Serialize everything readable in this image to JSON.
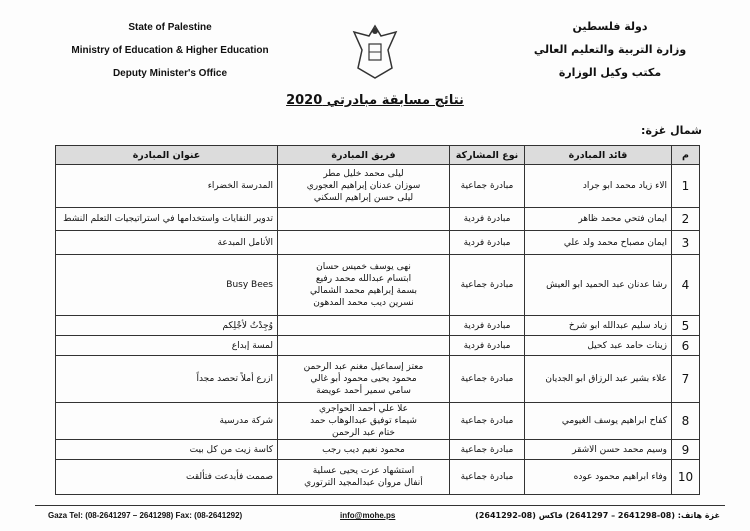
{
  "header": {
    "left_lines": [
      "State of Palestine",
      "Ministry of Education & Higher Education",
      "Deputy Minister's Office"
    ],
    "right_lines": [
      "دولة فلسطين",
      "وزارة التربية والتعليم العالي",
      "مكتب وكيل الوزارة"
    ]
  },
  "title": "نتائج مسابقة مبادرتي 2020",
  "section": "شمال غزة:",
  "table": {
    "columns": [
      "م",
      "قائد المبادرة",
      "نوع المشاركة",
      "فريق المبادرة",
      "عنوان المبادرة"
    ],
    "rows": [
      {
        "num": "1",
        "leader": "الاء زياد محمد ابو جراد",
        "type": "مبادرة جماعية",
        "team": [
          "ليلى محمد خليل مطر",
          "سوزان عدنان إبراهيم العجوري",
          "ليلى حسن إبراهيم السكني"
        ],
        "initiative": "المدرسة الخضراء"
      },
      {
        "num": "2",
        "leader": "ايمان فتحي محمد ظاهر",
        "type": "مبادرة فردية",
        "team": [],
        "initiative": "تدوير النفايات واستخدامها في استراتيجيات التعلم النشط"
      },
      {
        "num": "3",
        "leader": "ايمان مصباح محمد ولد علي",
        "type": "مبادرة فردية",
        "team": [],
        "initiative": "الأنامل المبدعة"
      },
      {
        "num": "4",
        "leader": "رشا عدنان عبد الحميد ابو العيش",
        "type": "مبادرة جماعية",
        "team": [
          "نهى يوسف خميس حسان",
          "ابتسام عبدالله محمد رفيع",
          "بسمة إبراهيم محمد الشمالي",
          "نسرين ديب محمد المدهون"
        ],
        "initiative": "Busy Bees"
      },
      {
        "num": "5",
        "leader": "زياد سليم عبدالله ابو شرخ",
        "type": "مبادرة فردية",
        "team": [],
        "initiative": "وُجِدْتُ لأجْلِكم"
      },
      {
        "num": "6",
        "leader": "زينات حامد عبد كحيل",
        "type": "مبادرة فردية",
        "team": [],
        "initiative": "لمسة إبداع"
      },
      {
        "num": "7",
        "leader": "علاء بشير عبد الرزاق ابو الجديان",
        "type": "مبادرة جماعية",
        "team": [
          "معتز إسماعيل مغنم عبد الرحمن",
          "محمود يحيى محمود أبو غالي",
          "سامي سمير أحمد عويضة"
        ],
        "initiative": "ازرع أملاً تحصد مجداً"
      },
      {
        "num": "8",
        "leader": "كفاح ابراهيم يوسف الغيومي",
        "type": "مبادرة جماعية",
        "team": [
          "علا علي أحمد الحواجري",
          "شيماء توفيق عبدالوهاب حمد",
          "ختام عبد الرحمن"
        ],
        "initiative": "شركة مدرسية"
      },
      {
        "num": "9",
        "leader": "وسيم محمد حسن الاشقر",
        "type": "مبادرة جماعية",
        "team": [
          "محمود نعيم ديب رجب"
        ],
        "initiative": "كاسة زيت من كل بيت"
      },
      {
        "num": "10",
        "leader": "وفاء ابراهيم محمود عوده",
        "type": "مبادرة جماعية",
        "team": [
          "استشهاد عزت يحيى عسلية",
          "أنفال مروان عبدالمجيد الترتوري"
        ],
        "initiative": "صممت فأبدعت فتألقت"
      }
    ]
  },
  "footer": {
    "left": "Gaza Tel: (08-2641297 – 2641298) Fax: (08-2641292)",
    "email": "info@mohe.ps",
    "right": "غزة هاتف: (08-2641298 – 2641297) فاكس (08-2641292)"
  }
}
